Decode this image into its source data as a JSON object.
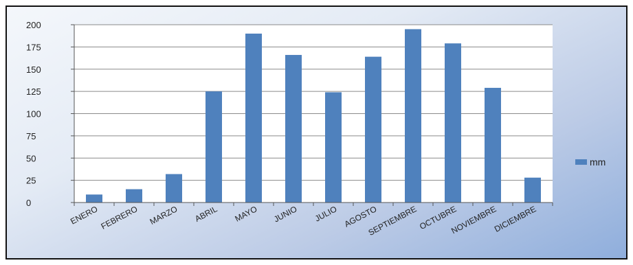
{
  "chart_data": {
    "type": "bar",
    "categories": [
      "ENERO",
      "FEBRERO",
      "MARZO",
      "ABRIL",
      "MAYO",
      "JUNIO",
      "JULIO",
      "AGOSTO",
      "SEPTIEMBRE",
      "OCTUBRE",
      "NOVIEMBRE",
      "DICIEMBRE"
    ],
    "series": [
      {
        "name": "mm",
        "values": [
          9,
          15,
          32,
          125,
          190,
          166,
          124,
          164,
          195,
          179,
          129,
          28
        ]
      }
    ],
    "title": "",
    "xlabel": "",
    "ylabel": "",
    "ylim": [
      0,
      200
    ],
    "yticks": [
      0,
      25,
      50,
      75,
      100,
      125,
      150,
      175,
      200
    ],
    "grid": true,
    "legend_position": "right",
    "bar_color": "#4f81bd"
  }
}
